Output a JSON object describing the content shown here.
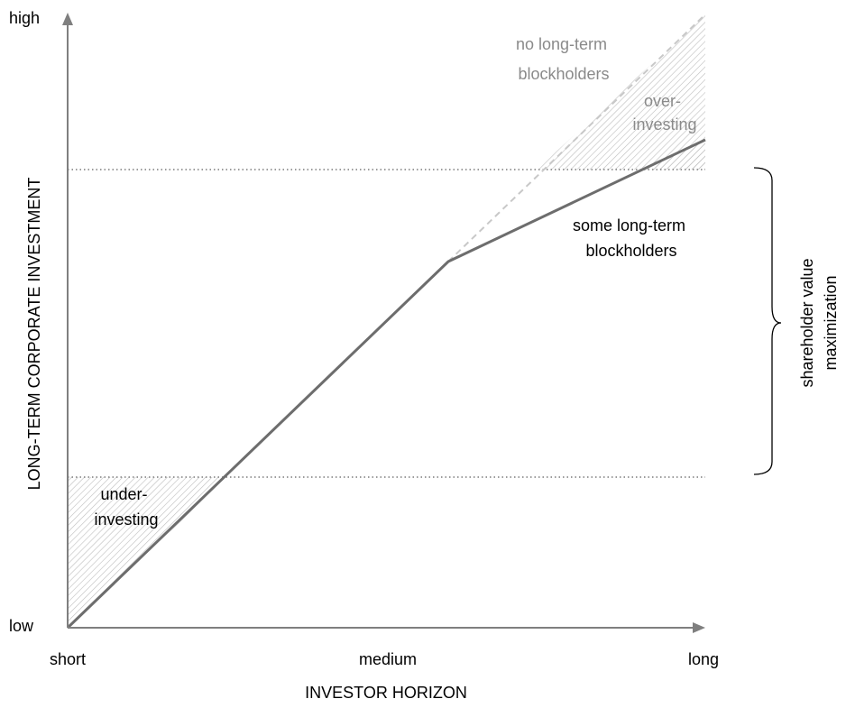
{
  "axes": {
    "y_label": "LONG-TERM CORPORATE INVESTMENT",
    "x_label": "INVESTOR HORIZON",
    "y_high": "high",
    "y_low": "low",
    "x_ticks": [
      "short",
      "medium",
      "long"
    ]
  },
  "annotations": {
    "no_blockholders": [
      "no long-term",
      "blockholders"
    ],
    "over_investing": [
      "over-",
      "investing"
    ],
    "some_blockholders": [
      "some long-term",
      "blockholders"
    ],
    "under_investing": [
      "under-",
      "investing"
    ],
    "bracket_label": [
      "shareholder value",
      "maximization"
    ]
  },
  "colors": {
    "axis": "#7f7f7f",
    "solid_line": "#6d6d6d",
    "dashed_line": "#c8c8c8",
    "hatch": "#bdbdbd",
    "grey_text": "#8a8a8a",
    "text": "#000000"
  }
}
